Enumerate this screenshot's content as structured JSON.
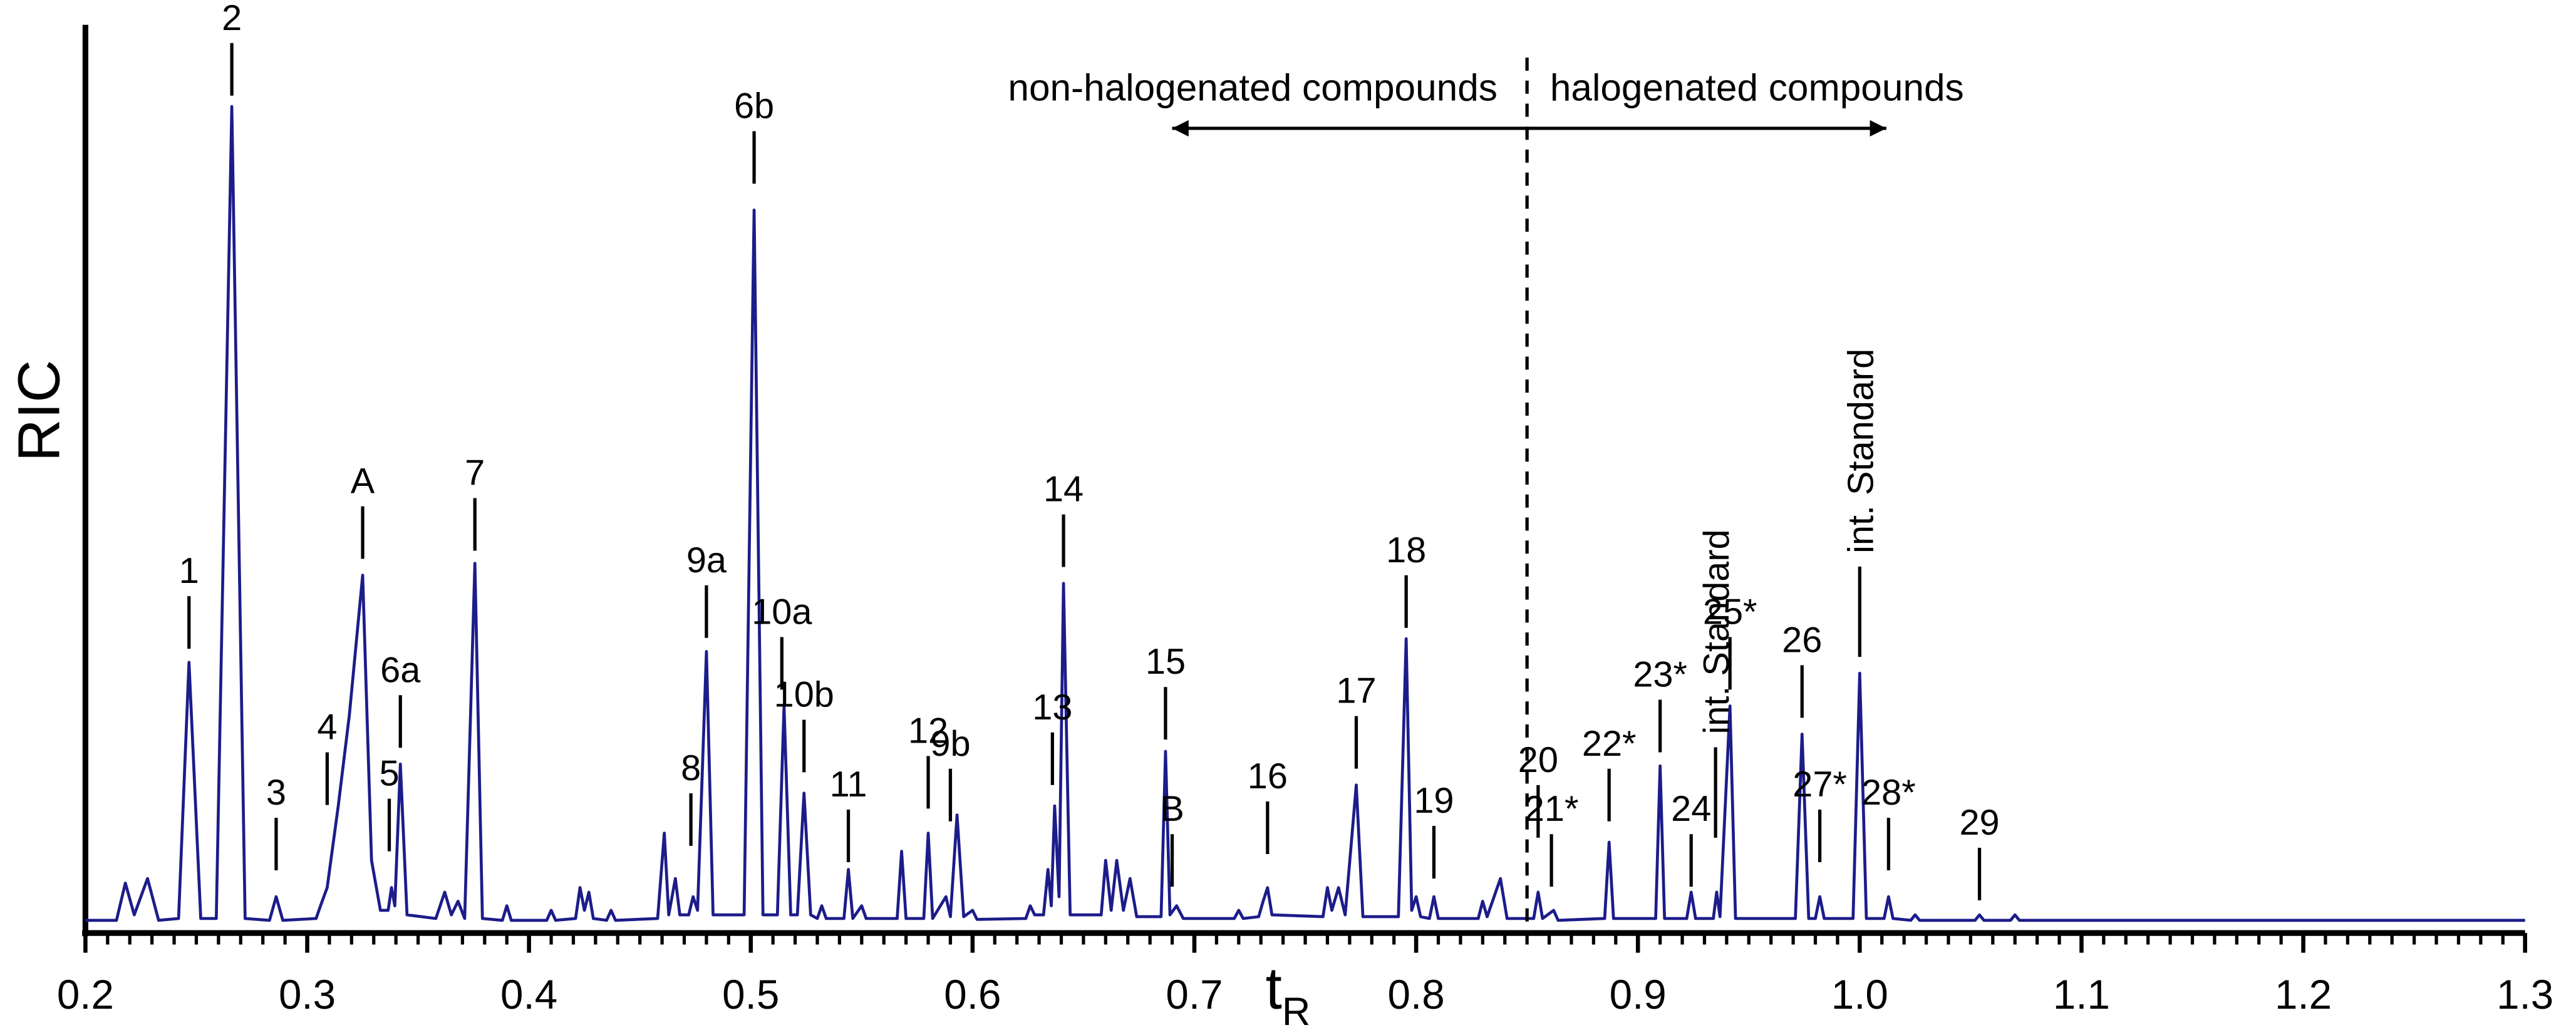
{
  "chart_data": {
    "type": "line",
    "y_label": "RIC",
    "x_label": {
      "text": "t",
      "subscript": "R"
    },
    "xlim": [
      0.2,
      1.3
    ],
    "xticks": [
      0.2,
      0.3,
      0.4,
      0.5,
      0.6,
      0.7,
      0.8,
      0.9,
      {
        "value": 1,
        "label": "1.0"
      },
      1.1,
      1.2,
      1.3
    ],
    "xminor_step": 0.01,
    "ylim": [
      0,
      100
    ],
    "x": [
      0.2,
      0.214,
      0.218,
      0.222,
      0.228,
      0.233,
      0.242,
      0.2467,
      0.252,
      0.259,
      0.266,
      0.272,
      0.283,
      0.286,
      0.289,
      0.304,
      0.306,
      0.309,
      0.314,
      0.319,
      0.325,
      0.329,
      0.333,
      0.3365,
      0.338,
      0.3395,
      0.342,
      0.345,
      0.358,
      0.362,
      0.365,
      0.368,
      0.371,
      0.3756,
      0.379,
      0.388,
      0.39,
      0.392,
      0.408,
      0.41,
      0.412,
      0.421,
      0.423,
      0.425,
      0.427,
      0.429,
      0.435,
      0.437,
      0.439,
      0.458,
      0.461,
      0.463,
      0.466,
      0.468,
      0.472,
      0.474,
      0.476,
      0.48,
      0.483,
      0.497,
      0.5015,
      0.5055,
      0.512,
      0.515,
      0.518,
      0.521,
      0.524,
      0.527,
      0.53,
      0.532,
      0.534,
      0.542,
      0.544,
      0.546,
      0.55,
      0.552,
      0.566,
      0.568,
      0.57,
      0.578,
      0.58,
      0.582,
      0.588,
      0.59,
      0.593,
      0.596,
      0.6,
      0.602,
      0.624,
      0.626,
      0.628,
      0.632,
      0.634,
      0.6355,
      0.637,
      0.639,
      0.641,
      0.644,
      0.658,
      0.66,
      0.6625,
      0.665,
      0.668,
      0.671,
      0.674,
      0.685,
      0.687,
      0.689,
      0.692,
      0.695,
      0.718,
      0.72,
      0.722,
      0.729,
      0.731,
      0.733,
      0.735,
      0.758,
      0.76,
      0.762,
      0.765,
      0.768,
      0.773,
      0.776,
      0.792,
      0.7955,
      0.798,
      0.8,
      0.802,
      0.806,
      0.808,
      0.81,
      0.828,
      0.83,
      0.832,
      0.838,
      0.841,
      0.853,
      0.855,
      0.857,
      0.862,
      0.864,
      0.885,
      0.887,
      0.889,
      0.908,
      0.91,
      0.912,
      0.922,
      0.924,
      0.926,
      0.934,
      0.9355,
      0.937,
      0.9415,
      0.944,
      0.971,
      0.974,
      0.977,
      0.98,
      0.982,
      0.984,
      0.997,
      1.0,
      1.003,
      1.011,
      1.013,
      1.015,
      1.023,
      1.025,
      1.027,
      1.052,
      1.054,
      1.056,
      1.068,
      1.07,
      1.072,
      1.3
    ],
    "series": [
      {
        "color": "#1c1c8a",
        "values": [
          1.4,
          1.4,
          5.5,
          2,
          6,
          1.4,
          1.6,
          29.8,
          1.6,
          1.6,
          91,
          1.6,
          1.4,
          4,
          1.4,
          1.6,
          3,
          5,
          14,
          24,
          39.4,
          8,
          2.5,
          2.5,
          5,
          3,
          18.6,
          2,
          1.6,
          4.5,
          2,
          3.5,
          1.6,
          40.7,
          1.6,
          1.4,
          3,
          1.4,
          1.4,
          2.5,
          1.4,
          1.6,
          5,
          2.5,
          4.5,
          1.6,
          1.4,
          2.5,
          1.4,
          1.6,
          11,
          2,
          6,
          2,
          2,
          4,
          2.5,
          31,
          2,
          2,
          79.6,
          2,
          2,
          25,
          2,
          2,
          15.4,
          2,
          1.6,
          3,
          1.6,
          1.6,
          7,
          1.6,
          3,
          1.6,
          1.6,
          9,
          1.6,
          1.6,
          11,
          1.6,
          4,
          1.8,
          13,
          1.8,
          2.5,
          1.5,
          1.6,
          3,
          2,
          2,
          7,
          3,
          14,
          4,
          38.5,
          2,
          2,
          8,
          2.5,
          8,
          2.5,
          6,
          1.8,
          1.8,
          20,
          2,
          3,
          1.6,
          1.6,
          2.5,
          1.6,
          1.8,
          3.5,
          5,
          2,
          1.8,
          5,
          2.5,
          5,
          2,
          16.3,
          1.8,
          1.8,
          32.4,
          2.5,
          4,
          1.8,
          1.6,
          4,
          1.6,
          1.6,
          3.5,
          1.8,
          6,
          1.6,
          1.6,
          4.5,
          1.6,
          2.5,
          1.4,
          1.6,
          10,
          1.6,
          1.6,
          18.4,
          1.6,
          1.6,
          4.5,
          1.6,
          1.6,
          4.5,
          1.8,
          25,
          1.6,
          1.6,
          21.9,
          1.6,
          1.6,
          4,
          1.6,
          1.6,
          28.6,
          1.6,
          1.6,
          4,
          1.6,
          1.4,
          2,
          1.4,
          1.4,
          2,
          1.4,
          1.4,
          2,
          1.4,
          1.4
        ]
      }
    ],
    "annotations": [
      {
        "text": "1",
        "x": 0.2467,
        "y": 31.3
      },
      {
        "text": "2",
        "x": 0.266,
        "y": 92.2
      },
      {
        "text": "3",
        "x": 0.286,
        "y": 6.9
      },
      {
        "text": "4",
        "x": 0.309,
        "y": 14.1
      },
      {
        "text": "A",
        "x": 0.325,
        "y": 41.2
      },
      {
        "text": "5",
        "x": 0.337,
        "y": 9.0
      },
      {
        "text": "6a",
        "x": 0.342,
        "y": 20.4
      },
      {
        "text": "7",
        "x": 0.3756,
        "y": 42.1
      },
      {
        "text": "8",
        "x": 0.473,
        "y": 9.6
      },
      {
        "text": "9a",
        "x": 0.48,
        "y": 32.5
      },
      {
        "text": "6b",
        "x": 0.5015,
        "y": 82.5
      },
      {
        "text": "10a",
        "x": 0.514,
        "y": 26.8
      },
      {
        "text": "10b",
        "x": 0.524,
        "y": 17.7
      },
      {
        "text": "11",
        "x": 0.544,
        "y": 7.8
      },
      {
        "text": "12",
        "x": 0.58,
        "y": 13.7
      },
      {
        "text": "9b",
        "x": 0.59,
        "y": 12.3
      },
      {
        "text": "13",
        "x": 0.636,
        "y": 16.3
      },
      {
        "text": "14",
        "x": 0.641,
        "y": 40.3
      },
      {
        "text": "15",
        "x": 0.687,
        "y": 21.3
      },
      {
        "text": "B",
        "x": 0.69,
        "y": 5.1
      },
      {
        "text": "16",
        "x": 0.733,
        "y": 8.7
      },
      {
        "text": "17",
        "x": 0.773,
        "y": 18.1
      },
      {
        "text": "18",
        "x": 0.7955,
        "y": 33.6
      },
      {
        "text": "19",
        "x": 0.808,
        "y": 6.0
      },
      {
        "text": "20",
        "x": 0.855,
        "y": 10.5
      },
      {
        "text": "21*",
        "x": 0.861,
        "y": 5.1
      },
      {
        "text": "22*",
        "x": 0.887,
        "y": 12.3
      },
      {
        "text": "23*",
        "x": 0.91,
        "y": 19.9
      },
      {
        "text": "24",
        "x": 0.924,
        "y": 5.1
      },
      {
        "text": "int. Standard",
        "x": 0.935,
        "y": 10.5,
        "vertical": true
      },
      {
        "text": "25*",
        "x": 0.9415,
        "y": 26.8
      },
      {
        "text": "26",
        "x": 0.974,
        "y": 23.7
      },
      {
        "text": "27*",
        "x": 0.982,
        "y": 7.8
      },
      {
        "text": "int. Standard",
        "x": 1,
        "y": 30.4,
        "vertical": true
      },
      {
        "text": "28*",
        "x": 1.013,
        "y": 6.9
      },
      {
        "text": "29",
        "x": 1.054,
        "y": 3.6
      }
    ],
    "region": {
      "divider": 0.85,
      "left_text": "non-halogenated compounds",
      "right_text": "halogenated compounds",
      "arrow_left": 0.69,
      "arrow_right": 1.012,
      "arrow_y": 88.6
    }
  }
}
